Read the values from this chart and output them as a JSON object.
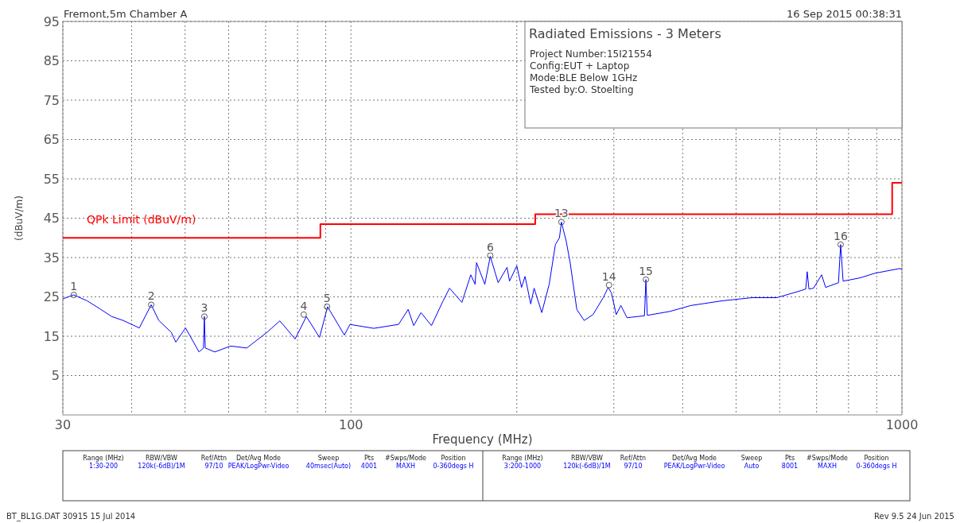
{
  "chart_data": {
    "type": "line",
    "title": "Radiated Emissions - 3 Meters",
    "xlabel": "Frequency (MHz)",
    "ylabel": "(dBuV/m)",
    "log": "x",
    "grid": true,
    "legend": false,
    "marker": "none",
    "line_style": "solid",
    "xlim": [
      30,
      1000
    ],
    "ylim": [
      -5,
      95
    ],
    "xticks": [
      30,
      {
        "value": 40,
        "label": null
      },
      {
        "value": 50,
        "label": null
      },
      {
        "value": 60,
        "label": null
      },
      {
        "value": 70,
        "label": null
      },
      {
        "value": 80,
        "label": null
      },
      {
        "value": 90,
        "label": null
      },
      100,
      {
        "value": 200,
        "label": null
      },
      {
        "value": 300,
        "label": null
      },
      {
        "value": 400,
        "label": null
      },
      {
        "value": 500,
        "label": null
      },
      {
        "value": 600,
        "label": null
      },
      {
        "value": 700,
        "label": null
      },
      {
        "value": 800,
        "label": null
      },
      {
        "value": 900,
        "label": null
      },
      1000
    ],
    "yticks": [
      5,
      15,
      25,
      35,
      45,
      55,
      65,
      75,
      85,
      95
    ],
    "series": [
      {
        "color": "#0000ff",
        "x": [
          30,
          31.4,
          33.2,
          35.0,
          36.8,
          38.6,
          41.3,
          43.4,
          44.8,
          47.2,
          48.1,
          50.1,
          53.0,
          54.0,
          54.2,
          54.4,
          56.6,
          60.5,
          64.7,
          70.3,
          74.3,
          79.2,
          83.0,
          87.7,
          90.7,
          97.3,
          99.6,
          110,
          122,
          127,
          130,
          134,
          140,
          147,
          151,
          159,
          165,
          168,
          169,
          175,
          179,
          185,
          192,
          194,
          200,
          204,
          207,
          212,
          215,
          222,
          229,
          235,
          239,
          241,
          246,
          250,
          257,
          265,
          275,
          287,
          293,
          297,
          303,
          309,
          317,
          341,
          343,
          345,
          379,
          414,
          472,
          535,
          593,
          649,
          669,
          673,
          678,
          691,
          715,
          727,
          767,
          774,
          782,
          838,
          893,
          990,
          1000
        ],
        "values": [
          24.5,
          25.5,
          24,
          22,
          20,
          19,
          17.1,
          23,
          19,
          16,
          13.5,
          17.1,
          11,
          12,
          20,
          12,
          11,
          12.5,
          12,
          15.9,
          18.9,
          14.3,
          20,
          14.7,
          22.5,
          15.3,
          18,
          17,
          18,
          21.8,
          17.7,
          21,
          17.7,
          24,
          27.2,
          23.6,
          30.6,
          28.2,
          33.7,
          28.2,
          35.3,
          28.6,
          32.5,
          29,
          32.9,
          27.4,
          30.2,
          23.2,
          27.2,
          21,
          28.2,
          38.3,
          40,
          44,
          39,
          33.6,
          21.8,
          19,
          20.5,
          24.8,
          27.4,
          26,
          20.5,
          22.8,
          19.7,
          20.2,
          29.4,
          20.3,
          21.3,
          22.8,
          24,
          24.8,
          24.8,
          26.4,
          27,
          31.4,
          27,
          27.2,
          30.6,
          27.4,
          28.6,
          38.3,
          29,
          29.8,
          31,
          32.2,
          32
        ]
      },
      {
        "name": "QPk Limit (dBuV/m)",
        "type": "step",
        "color": "#ff0000",
        "x": [
          30,
          88,
          216,
          960,
          1000
        ],
        "values": [
          40,
          43.5,
          46,
          54,
          54
        ]
      }
    ],
    "annotations": [
      "Fremont,5m Chamber A",
      "16 Sep 2015   00:38:31",
      "Project Number:15I21554",
      "Config:EUT + Laptop",
      "Mode:BLE Below 1GHz",
      "Tested by:O. Stoelting",
      "BT_BL1G.DAT 30915 15 Jul 2014",
      "Rev 9.5 24 Jun 2015",
      "Range (MHz)",
      "RBW/VBW",
      "Ref/Attn",
      "Det/Avg Mode",
      "Sweep",
      "Pts",
      "#Swps/Mode",
      "Position",
      "1:30-200",
      "120k(-6dB)/1M",
      "97/10",
      "PEAK/LogPwr-Video",
      "40msec(Auto)",
      "4001",
      "MAXH",
      "0-360degs H",
      "Range (MHz)",
      "RBW/VBW",
      "Ref/Attn",
      "Det/Avg Mode",
      "Sweep",
      "Pts",
      "#Swps/Mode",
      "Position",
      "3:200-1000",
      "120k(-6dB)/1M",
      "97/10",
      "PEAK/LogPwr-Video",
      "Auto",
      "8001",
      "MAXH",
      "0-360degs H",
      {
        "text": "1",
        "x": 31.4,
        "y": 25.5
      },
      {
        "text": "2",
        "x": 43.4,
        "y": 23
      },
      {
        "text": "3",
        "x": 54.2,
        "y": 20
      },
      {
        "text": "4",
        "x": 82.1,
        "y": 20.5
      },
      {
        "text": "5",
        "x": 90.5,
        "y": 22.5
      },
      {
        "text": "6",
        "x": 179,
        "y": 35.5
      },
      {
        "text": "13",
        "x": 241,
        "y": 44
      },
      {
        "text": "14",
        "x": 294,
        "y": 28
      },
      {
        "text": "15",
        "x": 343,
        "y": 29.4
      },
      {
        "text": "16",
        "x": 774,
        "y": 38.3
      }
    ]
  }
}
